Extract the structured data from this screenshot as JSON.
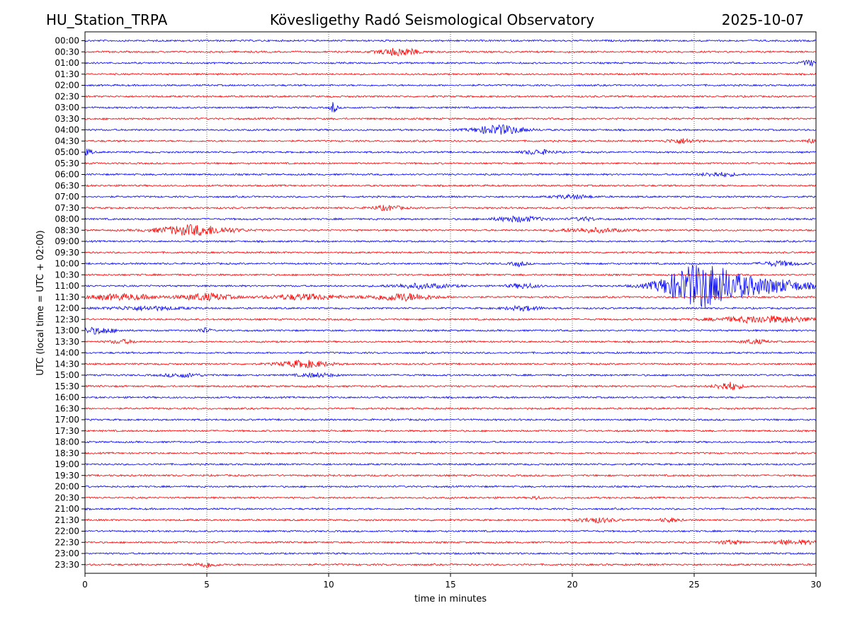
{
  "header": {
    "station": "HU_Station_TRPA",
    "observatory": "Kövesligethy Radó Seismological Observatory",
    "date": "2025-10-07"
  },
  "chart_data": {
    "type": "line",
    "title": "Kövesligethy Radó Seismological Observatory",
    "xlabel": "time in minutes",
    "ylabel": "UTC (local time = UTC + 02:00)",
    "xlim": [
      0,
      30
    ],
    "x_ticks": [
      0,
      5,
      10,
      15,
      20,
      25,
      30
    ],
    "x_tick_labels": [
      "0",
      "5",
      "10",
      "15",
      "20",
      "25",
      "30"
    ],
    "grid_x": true,
    "colors": [
      "#0000ff",
      "#ff0000"
    ],
    "rows": [
      {
        "label": "00:00",
        "color": "#0000ff",
        "events": []
      },
      {
        "label": "00:30",
        "color": "#ff0000",
        "events": [
          {
            "t": 12.9,
            "amp": 1.6,
            "dur": 1.6
          }
        ]
      },
      {
        "label": "01:00",
        "color": "#0000ff",
        "events": [
          {
            "t": 29.7,
            "amp": 1.2,
            "dur": 0.6
          }
        ]
      },
      {
        "label": "01:30",
        "color": "#ff0000",
        "events": []
      },
      {
        "label": "02:00",
        "color": "#0000ff",
        "events": []
      },
      {
        "label": "02:30",
        "color": "#ff0000",
        "events": []
      },
      {
        "label": "03:00",
        "color": "#0000ff",
        "events": [
          {
            "t": 10.2,
            "amp": 2.5,
            "dur": 0.25
          }
        ]
      },
      {
        "label": "03:30",
        "color": "#ff0000",
        "events": []
      },
      {
        "label": "04:00",
        "color": "#0000ff",
        "events": [
          {
            "t": 17.0,
            "amp": 2.0,
            "dur": 2.0
          }
        ]
      },
      {
        "label": "04:30",
        "color": "#ff0000",
        "events": [
          {
            "t": 24.5,
            "amp": 1.0,
            "dur": 1.2
          },
          {
            "t": 29.8,
            "amp": 0.8,
            "dur": 0.5
          }
        ]
      },
      {
        "label": "05:00",
        "color": "#0000ff",
        "events": [
          {
            "t": 0.1,
            "amp": 1.2,
            "dur": 0.4
          },
          {
            "t": 18.6,
            "amp": 1.0,
            "dur": 1.2
          }
        ]
      },
      {
        "label": "05:30",
        "color": "#ff0000",
        "events": []
      },
      {
        "label": "06:00",
        "color": "#0000ff",
        "events": [
          {
            "t": 26.0,
            "amp": 0.8,
            "dur": 1.5
          }
        ]
      },
      {
        "label": "06:30",
        "color": "#ff0000",
        "events": []
      },
      {
        "label": "07:00",
        "color": "#0000ff",
        "events": [
          {
            "t": 20.0,
            "amp": 0.8,
            "dur": 1.5
          }
        ]
      },
      {
        "label": "07:30",
        "color": "#ff0000",
        "events": [
          {
            "t": 12.4,
            "amp": 1.0,
            "dur": 1.2
          }
        ]
      },
      {
        "label": "08:00",
        "color": "#0000ff",
        "events": [
          {
            "t": 17.8,
            "amp": 1.1,
            "dur": 2.0
          },
          {
            "t": 20.5,
            "amp": 0.7,
            "dur": 1.0
          }
        ]
      },
      {
        "label": "08:30",
        "color": "#ff0000",
        "events": [
          {
            "t": 4.5,
            "amp": 2.2,
            "dur": 3.0
          },
          {
            "t": 20.8,
            "amp": 0.9,
            "dur": 2.5
          }
        ]
      },
      {
        "label": "09:00",
        "color": "#0000ff",
        "events": []
      },
      {
        "label": "09:30",
        "color": "#ff0000",
        "events": []
      },
      {
        "label": "10:00",
        "color": "#0000ff",
        "events": [
          {
            "t": 17.8,
            "amp": 1.0,
            "dur": 0.6
          },
          {
            "t": 28.5,
            "amp": 1.0,
            "dur": 1.5
          }
        ]
      },
      {
        "label": "10:30",
        "color": "#ff0000",
        "events": []
      },
      {
        "label": "11:00",
        "color": "#0000ff",
        "events": [
          {
            "t": 13.8,
            "amp": 1.0,
            "dur": 2.5
          },
          {
            "t": 18.0,
            "amp": 1.0,
            "dur": 1.2
          },
          {
            "t": 25.3,
            "amp": 9.5,
            "dur": 3.0
          },
          {
            "t": 28.0,
            "amp": 3.0,
            "dur": 3.5
          }
        ]
      },
      {
        "label": "11:30",
        "color": "#ff0000",
        "events": [
          {
            "t": 1.5,
            "amp": 1.2,
            "dur": 3.0
          },
          {
            "t": 5.0,
            "amp": 1.5,
            "dur": 2.0
          },
          {
            "t": 9.0,
            "amp": 1.2,
            "dur": 3.0
          },
          {
            "t": 13.0,
            "amp": 1.6,
            "dur": 2.5
          }
        ]
      },
      {
        "label": "12:00",
        "color": "#0000ff",
        "events": [
          {
            "t": 2.5,
            "amp": 0.8,
            "dur": 3.0
          },
          {
            "t": 18.0,
            "amp": 0.9,
            "dur": 1.5
          }
        ]
      },
      {
        "label": "12:30",
        "color": "#ff0000",
        "events": [
          {
            "t": 28.0,
            "amp": 1.4,
            "dur": 4.0
          }
        ]
      },
      {
        "label": "13:00",
        "color": "#0000ff",
        "events": [
          {
            "t": 0.5,
            "amp": 1.3,
            "dur": 1.5
          },
          {
            "t": 4.9,
            "amp": 1.0,
            "dur": 0.5
          }
        ]
      },
      {
        "label": "13:30",
        "color": "#ff0000",
        "events": [
          {
            "t": 1.5,
            "amp": 0.8,
            "dur": 1.0
          },
          {
            "t": 27.5,
            "amp": 0.9,
            "dur": 1.0
          }
        ]
      },
      {
        "label": "14:00",
        "color": "#0000ff",
        "events": []
      },
      {
        "label": "14:30",
        "color": "#ff0000",
        "events": [
          {
            "t": 9.0,
            "amp": 1.5,
            "dur": 2.0
          }
        ]
      },
      {
        "label": "15:00",
        "color": "#0000ff",
        "events": [
          {
            "t": 4.0,
            "amp": 0.8,
            "dur": 1.5
          },
          {
            "t": 9.5,
            "amp": 0.8,
            "dur": 1.5
          }
        ]
      },
      {
        "label": "15:30",
        "color": "#ff0000",
        "events": [
          {
            "t": 26.4,
            "amp": 1.8,
            "dur": 1.0
          }
        ]
      },
      {
        "label": "16:00",
        "color": "#0000ff",
        "events": []
      },
      {
        "label": "16:30",
        "color": "#ff0000",
        "events": []
      },
      {
        "label": "17:00",
        "color": "#0000ff",
        "events": []
      },
      {
        "label": "17:30",
        "color": "#ff0000",
        "events": []
      },
      {
        "label": "18:00",
        "color": "#0000ff",
        "events": []
      },
      {
        "label": "18:30",
        "color": "#ff0000",
        "events": []
      },
      {
        "label": "19:00",
        "color": "#0000ff",
        "events": []
      },
      {
        "label": "19:30",
        "color": "#ff0000",
        "events": []
      },
      {
        "label": "20:00",
        "color": "#0000ff",
        "events": []
      },
      {
        "label": "20:30",
        "color": "#ff0000",
        "events": [
          {
            "t": 18.5,
            "amp": 0.8,
            "dur": 0.3
          }
        ]
      },
      {
        "label": "21:00",
        "color": "#0000ff",
        "events": []
      },
      {
        "label": "21:30",
        "color": "#ff0000",
        "events": [
          {
            "t": 21.0,
            "amp": 1.0,
            "dur": 1.5
          },
          {
            "t": 24.0,
            "amp": 0.8,
            "dur": 0.8
          }
        ]
      },
      {
        "label": "22:00",
        "color": "#0000ff",
        "events": []
      },
      {
        "label": "22:30",
        "color": "#ff0000",
        "events": [
          {
            "t": 26.5,
            "amp": 0.8,
            "dur": 1.0
          },
          {
            "t": 28.6,
            "amp": 1.1,
            "dur": 0.6
          },
          {
            "t": 29.5,
            "amp": 0.8,
            "dur": 1.0
          }
        ]
      },
      {
        "label": "23:00",
        "color": "#0000ff",
        "events": []
      },
      {
        "label": "23:30",
        "color": "#ff0000",
        "events": [
          {
            "t": 5.0,
            "amp": 1.2,
            "dur": 0.8
          }
        ]
      }
    ]
  }
}
